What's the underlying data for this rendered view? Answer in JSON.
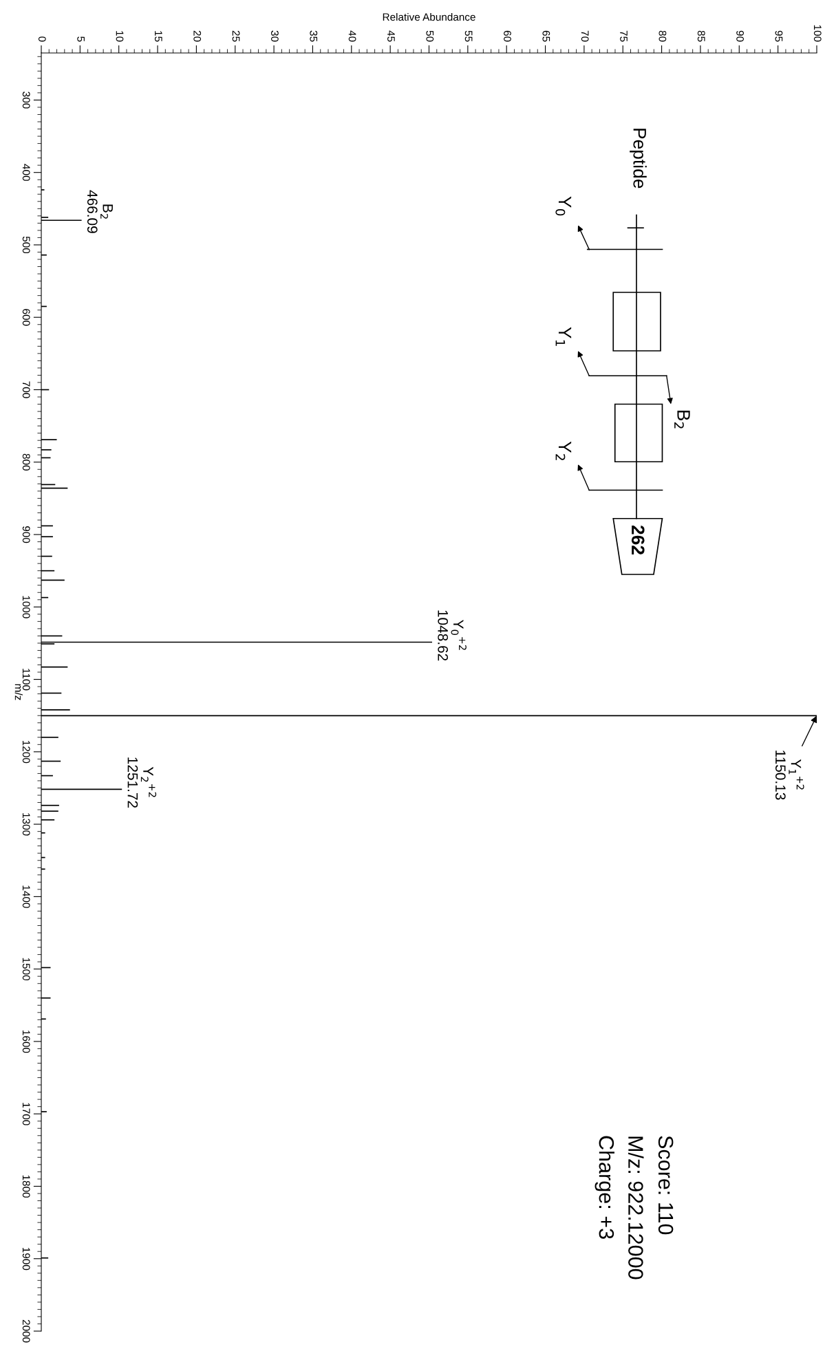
{
  "chart_data": {
    "type": "bar",
    "orientation": "horizontal",
    "xlabel": "Relative Abundance",
    "ylabel": "m/z",
    "x": [
      424,
      462,
      466.09,
      514,
      585,
      700,
      769,
      783,
      794,
      831,
      836,
      888,
      903,
      930,
      950,
      963,
      987,
      1040,
      1048.62,
      1051,
      1083,
      1119,
      1142,
      1150.13,
      1180,
      1213,
      1233,
      1251.72,
      1274,
      1282,
      1294,
      1312,
      1346,
      1362,
      1498,
      1540,
      1569,
      1697,
      1899
    ],
    "series": [
      {
        "color": "#000000",
        "values": [
          0.4,
          0.9,
          5.2,
          0.7,
          0.7,
          1.0,
          2.0,
          1.3,
          1.2,
          1.8,
          3.4,
          1.5,
          1.5,
          1.4,
          1.7,
          3.0,
          0.9,
          2.7,
          50.4,
          1.7,
          3.4,
          2.6,
          3.7,
          100,
          2.2,
          2.5,
          1.5,
          10.4,
          2.3,
          2.2,
          1.7,
          0.5,
          0.5,
          0.5,
          1.2,
          1.2,
          0.6,
          0.7,
          0.9
        ]
      }
    ],
    "xlim": [
      0,
      100
    ],
    "xticks": [
      0,
      5,
      10,
      15,
      20,
      25,
      30,
      35,
      40,
      45,
      50,
      55,
      60,
      65,
      70,
      75,
      80,
      85,
      90,
      95,
      100
    ],
    "ylim": [
      2000,
      235
    ],
    "yticks": [
      300,
      400,
      500,
      600,
      700,
      800,
      900,
      1000,
      1100,
      1200,
      1300,
      1400,
      1500,
      1600,
      1700,
      1800,
      1900,
      2000
    ],
    "grid": false,
    "legend": false,
    "annotations": [
      {
        "text": "B$_{2}$\n466.09",
        "x": 5.2,
        "y": 466.09
      },
      {
        "text": "Y$_{0}$$^{+2}$\n1048.62",
        "x": 50.4,
        "y": 1048.62
      },
      {
        "text": "Y$_{1}$$^{+2}$\n1150.13",
        "x": 100,
        "y": 1150.13
      },
      {
        "text": "Y$_{2}$$^{+2}$\n1251.72",
        "x": 10.4,
        "y": 1251.72
      },
      "Score: 110",
      "M/z: 922.12000",
      "Charge: +3",
      "Peptide",
      "Y$_{0}$",
      "Y$_{1}$",
      "Y$_{2}$",
      "B$_{2}$",
      "262"
    ]
  }
}
